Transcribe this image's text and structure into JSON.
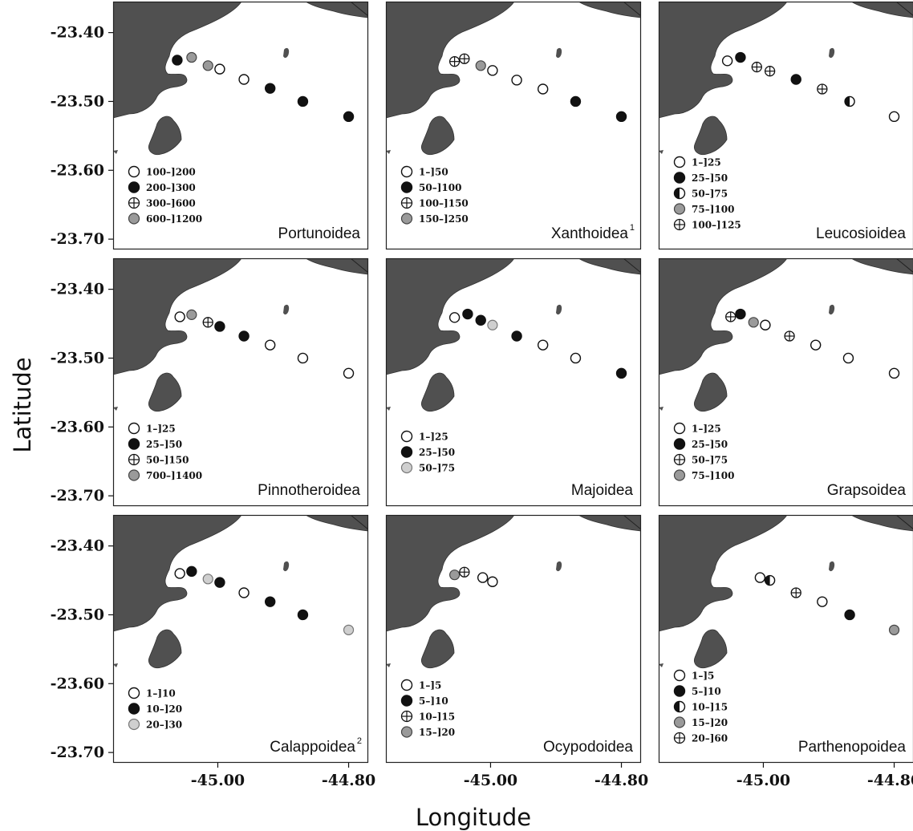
{
  "axes": {
    "xlabel": "Longitude",
    "ylabel": "Latitude",
    "x_ticks": [
      "-45.00",
      "-44.80"
    ],
    "y_ticks": [
      "-23.40",
      "-23.50",
      "-23.60",
      "-23.70"
    ],
    "lon_range": [
      -45.16,
      -44.77
    ],
    "lat_range": [
      -23.715,
      -23.355
    ]
  },
  "colors": {
    "land": "#505050",
    "gray_fill": "#9a9a9a",
    "light_fill": "#cfcfcf",
    "frame": "#222222"
  },
  "chart_data": [
    {
      "type": "scatter",
      "title": "Portunoidea",
      "superscript": "",
      "legend": [
        {
          "label": "100–]200",
          "symbol": "open"
        },
        {
          "label": "200–]300",
          "symbol": "filled"
        },
        {
          "label": "300–]600",
          "symbol": "cross"
        },
        {
          "label": "600–]1200",
          "symbol": "gray"
        }
      ],
      "points": [
        {
          "lon": -45.062,
          "lat": -23.44,
          "symbol": "filled"
        },
        {
          "lon": -45.04,
          "lat": -23.436,
          "symbol": "gray"
        },
        {
          "lon": -45.015,
          "lat": -23.448,
          "symbol": "gray"
        },
        {
          "lon": -44.997,
          "lat": -23.453,
          "symbol": "open"
        },
        {
          "lon": -44.96,
          "lat": -23.468,
          "symbol": "open"
        },
        {
          "lon": -44.92,
          "lat": -23.481,
          "symbol": "filled"
        },
        {
          "lon": -44.87,
          "lat": -23.5,
          "symbol": "filled"
        },
        {
          "lon": -44.8,
          "lat": -23.522,
          "symbol": "filled"
        }
      ]
    },
    {
      "type": "scatter",
      "title": "Xanthoidea",
      "superscript": "1",
      "legend": [
        {
          "label": "1–]50",
          "symbol": "open"
        },
        {
          "label": "50–]100",
          "symbol": "filled"
        },
        {
          "label": "100–]150",
          "symbol": "cross"
        },
        {
          "label": "150–]250",
          "symbol": "gray"
        }
      ],
      "points": [
        {
          "lon": -45.055,
          "lat": -23.442,
          "symbol": "cross"
        },
        {
          "lon": -45.04,
          "lat": -23.438,
          "symbol": "cross"
        },
        {
          "lon": -45.015,
          "lat": -23.448,
          "symbol": "gray"
        },
        {
          "lon": -44.997,
          "lat": -23.455,
          "symbol": "open"
        },
        {
          "lon": -44.96,
          "lat": -23.469,
          "symbol": "open"
        },
        {
          "lon": -44.92,
          "lat": -23.482,
          "symbol": "open"
        },
        {
          "lon": -44.87,
          "lat": -23.5,
          "symbol": "filled"
        },
        {
          "lon": -44.8,
          "lat": -23.522,
          "symbol": "filled"
        }
      ]
    },
    {
      "type": "scatter",
      "title": "Leucosioidea",
      "superscript": "",
      "legend": [
        {
          "label": "1–]25",
          "symbol": "open"
        },
        {
          "label": "25–]50",
          "symbol": "filled"
        },
        {
          "label": "50–]75",
          "symbol": "half"
        },
        {
          "label": "75–]100",
          "symbol": "gray"
        },
        {
          "label": "100–]125",
          "symbol": "cross"
        }
      ],
      "points": [
        {
          "lon": -45.055,
          "lat": -23.441,
          "symbol": "open"
        },
        {
          "lon": -45.035,
          "lat": -23.436,
          "symbol": "filled"
        },
        {
          "lon": -45.01,
          "lat": -23.45,
          "symbol": "cross"
        },
        {
          "lon": -44.99,
          "lat": -23.456,
          "symbol": "cross"
        },
        {
          "lon": -44.95,
          "lat": -23.468,
          "symbol": "filled"
        },
        {
          "lon": -44.91,
          "lat": -23.482,
          "symbol": "cross"
        },
        {
          "lon": -44.868,
          "lat": -23.5,
          "symbol": "half"
        },
        {
          "lon": -44.8,
          "lat": -23.522,
          "symbol": "open"
        }
      ]
    },
    {
      "type": "scatter",
      "title": "Pinnotheroidea",
      "superscript": "",
      "legend": [
        {
          "label": "1–]25",
          "symbol": "open"
        },
        {
          "label": "25–]50",
          "symbol": "filled"
        },
        {
          "label": "50–]150",
          "symbol": "cross"
        },
        {
          "label": "700–]1400",
          "symbol": "gray"
        }
      ],
      "points": [
        {
          "lon": -45.058,
          "lat": -23.44,
          "symbol": "open"
        },
        {
          "lon": -45.04,
          "lat": -23.437,
          "symbol": "gray"
        },
        {
          "lon": -45.015,
          "lat": -23.448,
          "symbol": "cross"
        },
        {
          "lon": -44.997,
          "lat": -23.454,
          "symbol": "filled"
        },
        {
          "lon": -44.96,
          "lat": -23.468,
          "symbol": "filled"
        },
        {
          "lon": -44.92,
          "lat": -23.481,
          "symbol": "open"
        },
        {
          "lon": -44.87,
          "lat": -23.5,
          "symbol": "open"
        },
        {
          "lon": -44.8,
          "lat": -23.522,
          "symbol": "open"
        }
      ]
    },
    {
      "type": "scatter",
      "title": "Majoidea",
      "superscript": "",
      "legend": [
        {
          "label": "1–]25",
          "symbol": "open"
        },
        {
          "label": "25–]50",
          "symbol": "filled"
        },
        {
          "label": "50–]75",
          "symbol": "light"
        }
      ],
      "points": [
        {
          "lon": -45.055,
          "lat": -23.441,
          "symbol": "open"
        },
        {
          "lon": -45.035,
          "lat": -23.436,
          "symbol": "filled"
        },
        {
          "lon": -45.015,
          "lat": -23.445,
          "symbol": "filled"
        },
        {
          "lon": -44.997,
          "lat": -23.452,
          "symbol": "light"
        },
        {
          "lon": -44.96,
          "lat": -23.468,
          "symbol": "filled"
        },
        {
          "lon": -44.92,
          "lat": -23.481,
          "symbol": "open"
        },
        {
          "lon": -44.87,
          "lat": -23.5,
          "symbol": "open"
        },
        {
          "lon": -44.8,
          "lat": -23.522,
          "symbol": "filled"
        }
      ]
    },
    {
      "type": "scatter",
      "title": "Grapsoidea",
      "superscript": "",
      "legend": [
        {
          "label": "1–]25",
          "symbol": "open"
        },
        {
          "label": "25–]50",
          "symbol": "filled"
        },
        {
          "label": "50–]75",
          "symbol": "cross"
        },
        {
          "label": "75–]100",
          "symbol": "gray"
        }
      ],
      "points": [
        {
          "lon": -45.05,
          "lat": -23.44,
          "symbol": "cross"
        },
        {
          "lon": -45.035,
          "lat": -23.436,
          "symbol": "filled"
        },
        {
          "lon": -45.015,
          "lat": -23.448,
          "symbol": "gray"
        },
        {
          "lon": -44.997,
          "lat": -23.452,
          "symbol": "open"
        },
        {
          "lon": -44.96,
          "lat": -23.468,
          "symbol": "cross"
        },
        {
          "lon": -44.92,
          "lat": -23.481,
          "symbol": "open"
        },
        {
          "lon": -44.87,
          "lat": -23.5,
          "symbol": "open"
        },
        {
          "lon": -44.8,
          "lat": -23.522,
          "symbol": "open"
        }
      ]
    },
    {
      "type": "scatter",
      "title": "Calappoidea",
      "superscript": "2",
      "legend": [
        {
          "label": "1–]10",
          "symbol": "open"
        },
        {
          "label": "10–]20",
          "symbol": "filled"
        },
        {
          "label": "20–]30",
          "symbol": "light"
        }
      ],
      "points": [
        {
          "lon": -45.058,
          "lat": -23.44,
          "symbol": "open"
        },
        {
          "lon": -45.04,
          "lat": -23.437,
          "symbol": "filled"
        },
        {
          "lon": -45.015,
          "lat": -23.448,
          "symbol": "light"
        },
        {
          "lon": -44.997,
          "lat": -23.453,
          "symbol": "filled"
        },
        {
          "lon": -44.96,
          "lat": -23.468,
          "symbol": "open"
        },
        {
          "lon": -44.92,
          "lat": -23.481,
          "symbol": "filled"
        },
        {
          "lon": -44.87,
          "lat": -23.5,
          "symbol": "filled"
        },
        {
          "lon": -44.8,
          "lat": -23.522,
          "symbol": "light"
        }
      ]
    },
    {
      "type": "scatter",
      "title": "Ocypodoidea",
      "superscript": "",
      "legend": [
        {
          "label": "1–]5",
          "symbol": "open"
        },
        {
          "label": "5–]10",
          "symbol": "filled"
        },
        {
          "label": "10–]15",
          "symbol": "cross"
        },
        {
          "label": "15–]20",
          "symbol": "gray"
        }
      ],
      "points": [
        {
          "lon": -45.055,
          "lat": -23.442,
          "symbol": "gray"
        },
        {
          "lon": -45.04,
          "lat": -23.438,
          "symbol": "cross"
        },
        {
          "lon": -45.012,
          "lat": -23.446,
          "symbol": "open"
        },
        {
          "lon": -44.997,
          "lat": -23.452,
          "symbol": "open"
        }
      ]
    },
    {
      "type": "scatter",
      "title": "Parthenopoidea",
      "superscript": "",
      "legend": [
        {
          "label": "1–]5",
          "symbol": "open"
        },
        {
          "label": "5–]10",
          "symbol": "filled"
        },
        {
          "label": "10–]15",
          "symbol": "half"
        },
        {
          "label": "15–]20",
          "symbol": "gray"
        },
        {
          "label": "20–]60",
          "symbol": "cross"
        }
      ],
      "points": [
        {
          "lon": -45.005,
          "lat": -23.446,
          "symbol": "open"
        },
        {
          "lon": -44.99,
          "lat": -23.45,
          "symbol": "half"
        },
        {
          "lon": -44.95,
          "lat": -23.468,
          "symbol": "cross"
        },
        {
          "lon": -44.91,
          "lat": -23.481,
          "symbol": "open"
        },
        {
          "lon": -44.868,
          "lat": -23.5,
          "symbol": "filled"
        },
        {
          "lon": -44.8,
          "lat": -23.522,
          "symbol": "gray"
        }
      ]
    }
  ]
}
